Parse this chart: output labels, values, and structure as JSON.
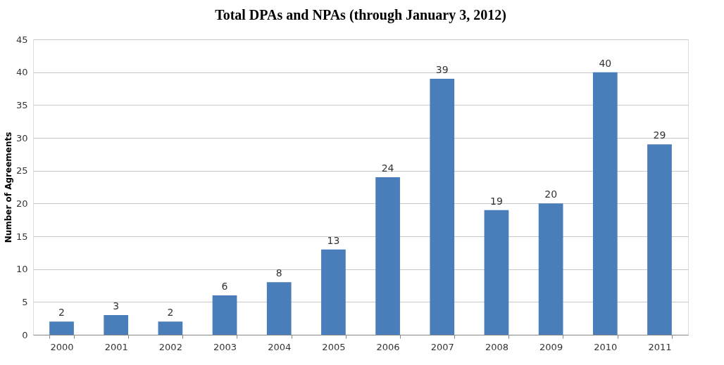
{
  "chart_data": {
    "type": "bar",
    "title": "Total DPAs and NPAs (through January 3, 2012)",
    "ylabel": "Number of Agreements",
    "categories": [
      "2000",
      "2001",
      "2002",
      "2003",
      "2004",
      "2005",
      "2006",
      "2007",
      "2008",
      "2009",
      "2010",
      "2011"
    ],
    "values": [
      2,
      3,
      2,
      6,
      8,
      13,
      24,
      39,
      19,
      20,
      40,
      29
    ],
    "color": "#4a7ebb",
    "ylim": [
      0,
      45
    ],
    "yticks": [
      0,
      5,
      10,
      15,
      20,
      25,
      30,
      35,
      40,
      45
    ],
    "grid": "y",
    "data_labels": true
  }
}
